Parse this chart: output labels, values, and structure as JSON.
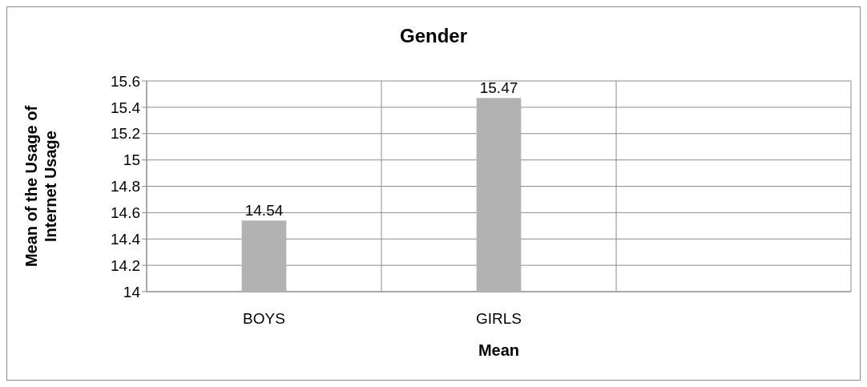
{
  "chart_data": {
    "type": "bar",
    "title": "Gender",
    "xlabel": "Mean",
    "ylabel": "Mean of the Usage of Internet Usage",
    "categories": [
      "BOYS",
      "GIRLS",
      null
    ],
    "values": [
      14.54,
      15.47,
      null
    ],
    "color": "#b2b2b2",
    "ylim": [
      14,
      15.6
    ],
    "yticks": [
      14,
      14.2,
      14.4,
      14.6,
      14.8,
      15,
      15.2,
      15.4,
      15.6
    ],
    "grid": true,
    "data_labels": true
  }
}
